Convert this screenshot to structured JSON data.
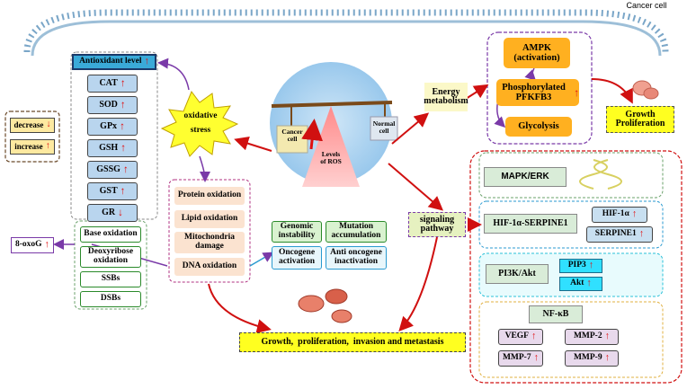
{
  "cell": {
    "label": "Cancer cell"
  },
  "antioxidant": {
    "header": "Antioxidant level",
    "items": [
      {
        "label": "CAT",
        "dir": "up"
      },
      {
        "label": "SOD",
        "dir": "up"
      },
      {
        "label": "GPx",
        "dir": "up"
      },
      {
        "label": "GSH",
        "dir": "up"
      },
      {
        "label": "GSSG",
        "dir": "up"
      },
      {
        "label": "GST",
        "dir": "up"
      },
      {
        "label": "GR",
        "dir": "down"
      }
    ]
  },
  "legend": {
    "decrease": "decrease",
    "increase": "increase"
  },
  "stress": {
    "line1": "oxidative",
    "line2": "stress"
  },
  "balance": {
    "cancer": "Cancer cell",
    "normal": "Normal cell",
    "ros": "Levels of ROS"
  },
  "oxidation": {
    "protein": "Protein oxidation",
    "lipid": "Lipid oxidation",
    "mito": "Mitochondria damage",
    "dna": "DNA oxidation"
  },
  "dna_damage": {
    "base": "Base oxidation",
    "deoxy": "Deoxyribose oxidation",
    "ssb": "SSBs",
    "dsb": "DSBs",
    "oxog": "8-oxoG"
  },
  "genomic": {
    "instability": "Genomic instability",
    "mutation": "Mutation accumulation",
    "oncogene": "Oncogene activation",
    "anti": "Anti oncogene inactivation"
  },
  "energy": {
    "label": "Energy metabolism",
    "ampk": "AMPK (activation)",
    "pfkfb3": "Phosphorylated PFKFB3",
    "glycolysis": "Glycolysis",
    "growth": "Growth Proliferation"
  },
  "signaling": {
    "label": "signaling pathway",
    "mapk": "MAPK/ERK",
    "hif_serpine": "HIF-1α-SERPINE1",
    "hif": "HIF-1α",
    "serpine": "SERPINE1",
    "pi3k": "PI3K/Akt",
    "pip3": "PIP3",
    "akt": "Akt",
    "nfkb": "NF-κB",
    "vegf": "VEGF",
    "mmp2": "MMP-2",
    "mmp7": "MMP-7",
    "mmp9": "MMP-9"
  },
  "outcome": "Growth,  proliferation,  invasion and metastasis",
  "colors": {
    "arrow_red": "#d01010",
    "arrow_purple": "#7a3aa8",
    "membrane": "#7aa6c8",
    "yellow": "#ffff20",
    "orange": "#ffb020"
  }
}
